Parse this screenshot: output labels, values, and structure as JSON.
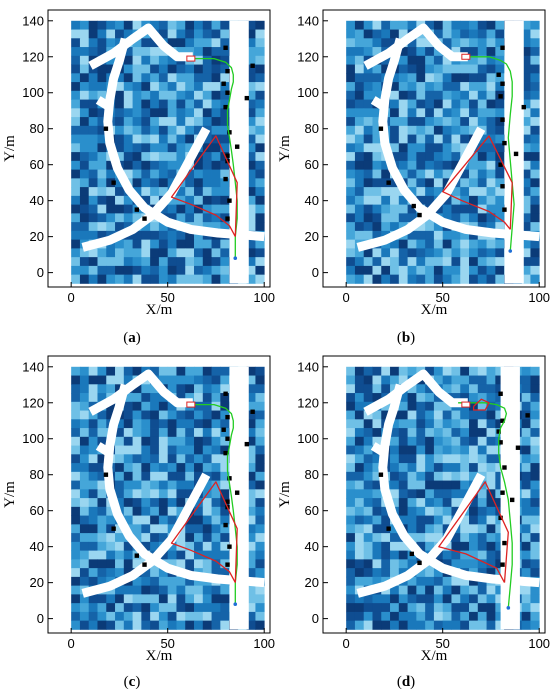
{
  "panels": [
    {
      "label": "a"
    },
    {
      "label": "b"
    },
    {
      "label": "c"
    },
    {
      "label": "d"
    }
  ],
  "chart_data": [
    {
      "type": "line",
      "panel": "a",
      "xlabel": "X/m",
      "ylabel": "Y/m",
      "xlim": [
        -12,
        103
      ],
      "ylim": [
        -8,
        146
      ],
      "xticks": [
        0,
        50,
        100
      ],
      "yticks": [
        0,
        20,
        40,
        60,
        80,
        100,
        120,
        140
      ],
      "map_extent": {
        "x": [
          0,
          100
        ],
        "y": [
          -6,
          140
        ]
      },
      "corridor_x": [
        82,
        92
      ],
      "start": [
        85,
        8
      ],
      "goal": [
        62,
        119
      ],
      "series": [
        {
          "color": "#22cc22",
          "x": [
            85,
            85,
            86,
            86,
            85,
            84,
            83,
            82,
            81,
            81,
            82,
            83,
            84,
            84,
            83,
            80,
            74,
            66,
            60
          ],
          "y": [
            8,
            20,
            30,
            40,
            50,
            60,
            68,
            75,
            82,
            90,
            96,
            102,
            106,
            110,
            114,
            117,
            119,
            119,
            119
          ]
        },
        {
          "color": "#dd2222",
          "x": [
            85,
            82,
            75,
            62,
            52,
            75,
            86,
            85
          ],
          "y": [
            20,
            26,
            32,
            38,
            42,
            76,
            50,
            20
          ]
        }
      ],
      "obstacles_x": [
        80,
        81,
        81,
        80,
        82,
        81,
        80,
        82,
        81,
        79,
        81,
        22,
        34,
        38,
        91,
        86,
        94,
        18
      ],
      "obstacles_y": [
        125,
        112,
        100,
        92,
        78,
        65,
        52,
        40,
        30,
        105,
        62,
        50,
        35,
        30,
        97,
        70,
        115,
        80
      ]
    },
    {
      "type": "line",
      "panel": "b",
      "xlabel": "X/m",
      "ylabel": "Y/m",
      "xlim": [
        -12,
        103
      ],
      "ylim": [
        -8,
        146
      ],
      "xticks": [
        0,
        50,
        100
      ],
      "yticks": [
        0,
        20,
        40,
        60,
        80,
        100,
        120,
        140
      ],
      "map_extent": {
        "x": [
          0,
          100
        ],
        "y": [
          -6,
          140
        ]
      },
      "corridor_x": [
        82,
        92
      ],
      "start": [
        85,
        12
      ],
      "goal": [
        62,
        120
      ],
      "series": [
        {
          "color": "#22cc22",
          "x": [
            85,
            86,
            87,
            86,
            85,
            84,
            85,
            86,
            86,
            85,
            83,
            80,
            74,
            66,
            60
          ],
          "y": [
            12,
            25,
            38,
            50,
            62,
            75,
            88,
            98,
            106,
            112,
            116,
            118,
            120,
            120,
            120
          ]
        },
        {
          "color": "#dd2222",
          "x": [
            85,
            82,
            74,
            60,
            50,
            74,
            86,
            85
          ],
          "y": [
            24,
            28,
            34,
            40,
            45,
            76,
            50,
            24
          ]
        }
      ],
      "obstacles_x": [
        81,
        81,
        80,
        81,
        82,
        80,
        81,
        82,
        79,
        22,
        35,
        38,
        92,
        88,
        18
      ],
      "obstacles_y": [
        125,
        105,
        98,
        85,
        72,
        60,
        48,
        35,
        110,
        50,
        37,
        32,
        92,
        66,
        80
      ]
    },
    {
      "type": "line",
      "panel": "c",
      "xlabel": "X/m",
      "ylabel": "Y/m",
      "xlim": [
        -12,
        103
      ],
      "ylim": [
        -8,
        146
      ],
      "xticks": [
        0,
        50,
        100
      ],
      "yticks": [
        0,
        20,
        40,
        60,
        80,
        100,
        120,
        140
      ],
      "map_extent": {
        "x": [
          0,
          100
        ],
        "y": [
          -6,
          140
        ]
      },
      "corridor_x": [
        82,
        92
      ],
      "start": [
        85,
        8
      ],
      "goal": [
        62,
        119
      ],
      "series": [
        {
          "color": "#22cc22",
          "x": [
            85,
            85,
            86,
            86,
            85,
            84,
            83,
            82,
            81,
            81,
            82,
            83,
            84,
            84,
            83,
            80,
            74,
            66,
            60
          ],
          "y": [
            8,
            20,
            30,
            40,
            50,
            60,
            68,
            75,
            82,
            90,
            96,
            102,
            106,
            110,
            114,
            117,
            119,
            119,
            119
          ]
        },
        {
          "color": "#dd2222",
          "x": [
            85,
            82,
            75,
            62,
            52,
            75,
            86,
            85
          ],
          "y": [
            20,
            26,
            32,
            38,
            42,
            76,
            50,
            20
          ]
        }
      ],
      "obstacles_x": [
        80,
        81,
        81,
        80,
        82,
        81,
        80,
        82,
        81,
        79,
        81,
        22,
        34,
        38,
        91,
        86,
        94,
        18
      ],
      "obstacles_y": [
        125,
        112,
        100,
        92,
        78,
        65,
        52,
        40,
        30,
        105,
        62,
        50,
        35,
        30,
        97,
        70,
        115,
        80
      ]
    },
    {
      "type": "line",
      "panel": "d",
      "xlabel": "X/m",
      "ylabel": "Y/m",
      "xlim": [
        -12,
        103
      ],
      "ylim": [
        -8,
        146
      ],
      "xticks": [
        0,
        50,
        100
      ],
      "yticks": [
        0,
        20,
        40,
        60,
        80,
        100,
        120,
        140
      ],
      "map_extent": {
        "x": [
          0,
          100
        ],
        "y": [
          -6,
          140
        ]
      },
      "corridor_x": [
        80,
        90
      ],
      "start": [
        84,
        6
      ],
      "goal": [
        62,
        119
      ],
      "series": [
        {
          "color": "#22cc22",
          "x": [
            84,
            85,
            86,
            86,
            85,
            84,
            82,
            80,
            79,
            79,
            80,
            82,
            83,
            82,
            78,
            72,
            66,
            58
          ],
          "y": [
            6,
            18,
            30,
            42,
            54,
            66,
            76,
            84,
            92,
            100,
            106,
            110,
            114,
            117,
            119,
            120,
            120,
            120
          ]
        },
        {
          "color": "#dd2222",
          "x": [
            82,
            78,
            62,
            48,
            72,
            84,
            82
          ],
          "y": [
            20,
            28,
            36,
            40,
            76,
            48,
            20
          ]
        },
        {
          "color": "#dd2222",
          "x": [
            66,
            70,
            74,
            72,
            66,
            66
          ],
          "y": [
            118,
            122,
            120,
            116,
            116,
            118
          ]
        }
      ],
      "obstacles_x": [
        80,
        81,
        80,
        82,
        81,
        80,
        82,
        81,
        79,
        22,
        34,
        38,
        89,
        86,
        94,
        18
      ],
      "obstacles_y": [
        125,
        110,
        98,
        84,
        70,
        56,
        42,
        30,
        104,
        50,
        36,
        31,
        95,
        66,
        113,
        80
      ]
    }
  ]
}
